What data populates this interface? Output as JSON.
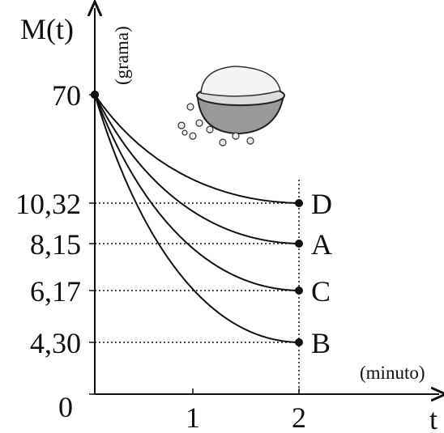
{
  "chart_data": {
    "type": "line",
    "y_label": "M(t)",
    "y_unit": "(grama)",
    "x_label": "t",
    "x_unit": "(minuto)",
    "x": [
      0,
      2
    ],
    "xticks": [
      1,
      2
    ],
    "yticks": [
      0,
      {
        "value": 4.3,
        "label": "4,30"
      },
      {
        "value": 6.17,
        "label": "6,17"
      },
      {
        "value": 8.15,
        "label": "8,15"
      },
      {
        "value": 10.32,
        "label": "10,32"
      },
      70
    ],
    "series": [
      {
        "name": "D",
        "color": "#111111",
        "values": [
          70,
          10.32
        ]
      },
      {
        "name": "A",
        "color": "#111111",
        "values": [
          70,
          8.15
        ]
      },
      {
        "name": "C",
        "color": "#111111",
        "values": [
          70,
          6.17
        ]
      },
      {
        "name": "B",
        "color": "#111111",
        "values": [
          70,
          4.3
        ]
      }
    ]
  }
}
